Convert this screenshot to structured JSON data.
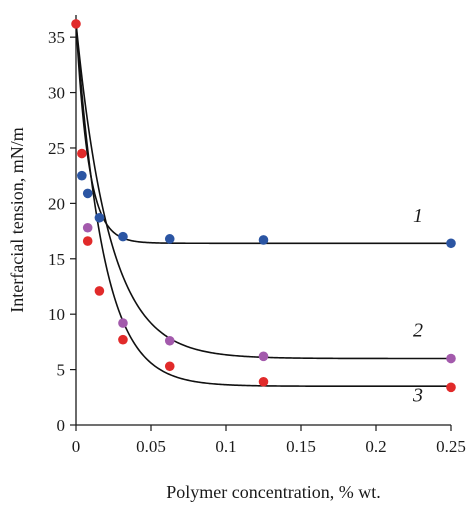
{
  "chart_data": {
    "type": "scatter",
    "title": "",
    "xlabel": "Polymer concentration, % wt.",
    "ylabel": "Interfacial tension, mN/m",
    "xlim": [
      0,
      0.25
    ],
    "ylim": [
      0,
      37
    ],
    "x_ticks": [
      0,
      0.05,
      0.1,
      0.15,
      0.2,
      0.25
    ],
    "x_tick_labels": [
      "0",
      "0.05",
      "0.1",
      "0.15",
      "0.2",
      "0.25"
    ],
    "y_ticks": [
      0,
      5,
      10,
      15,
      20,
      25,
      30,
      35
    ],
    "y_tick_labels": [
      "0",
      "5",
      "10",
      "15",
      "20",
      "25",
      "30",
      "35"
    ],
    "grid": false,
    "series": [
      {
        "name": "1",
        "color": "#2b55a3",
        "x": [
          0.0039,
          0.0078,
          0.0156,
          0.0313,
          0.0625,
          0.125,
          0.25
        ],
        "y": [
          22.5,
          20.9,
          18.7,
          17.0,
          16.8,
          16.7,
          16.4
        ],
        "fit": {
          "a": 16.4,
          "b": 20.0,
          "k": 120
        }
      },
      {
        "name": "2",
        "color": "#a35aac",
        "x": [
          0.0078,
          0.0313,
          0.0625,
          0.125,
          0.25
        ],
        "y": [
          17.8,
          9.2,
          7.6,
          6.2,
          6.0
        ],
        "fit": {
          "a": 6.0,
          "b": 30.3,
          "k": 45
        }
      },
      {
        "name": "3",
        "color": "#e12a2a",
        "x": [
          0.0,
          0.0039,
          0.0078,
          0.0156,
          0.0313,
          0.0625,
          0.125,
          0.25
        ],
        "y": [
          36.2,
          24.5,
          16.6,
          12.1,
          7.7,
          5.3,
          3.9,
          3.4
        ],
        "fit": {
          "a": 3.5,
          "b": 32.8,
          "k": 55
        }
      }
    ]
  }
}
